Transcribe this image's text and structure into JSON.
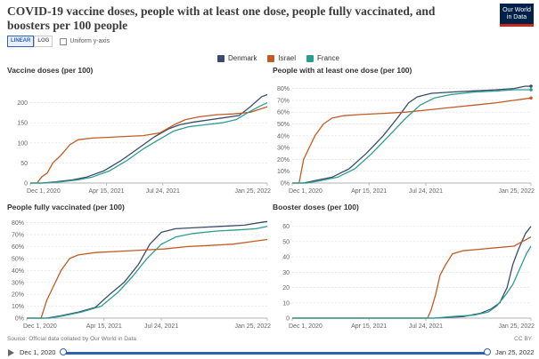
{
  "header": {
    "title": "COVID-19 vaccine doses, people with at least one dose, people fully vaccinated, and boosters per 100 people",
    "logo_text": "Our World in Data"
  },
  "controls": {
    "linear_label": "LINEAR",
    "log_label": "LOG",
    "uniform_label": "Uniform y-axis"
  },
  "legend": [
    {
      "name": "Denmark",
      "color": "#3a4a6b"
    },
    {
      "name": "Israel",
      "color": "#c25b25"
    },
    {
      "name": "France",
      "color": "#2a9d8f"
    }
  ],
  "footer": {
    "source": "Source: Official data collated by Our World in Data",
    "license": "CC BY"
  },
  "timeline": {
    "start_label": "Dec 1, 2020",
    "end_label": "Jan 25, 2022"
  },
  "chart_data": [
    {
      "type": "line",
      "title": "Vaccine doses (per 100)",
      "x_ticks": [
        "Dec 1, 2020",
        "Apr 15, 2021",
        "Jul 24, 2021",
        "Jan 25, 2022"
      ],
      "x_tick_days": [
        0,
        135,
        235,
        420
      ],
      "xlim_days": [
        0,
        420
      ],
      "ylim": [
        0,
        230
      ],
      "y_ticks": [
        0,
        50,
        100,
        150,
        200
      ],
      "y_ticks_labels": [
        "0",
        "50",
        "100",
        "150",
        "200"
      ],
      "series": [
        {
          "name": "Denmark",
          "color": "#3a4a6b",
          "points": [
            [
              0,
              0
            ],
            [
              20,
              0
            ],
            [
              45,
              3
            ],
            [
              75,
              8
            ],
            [
              100,
              15
            ],
            [
              130,
              30
            ],
            [
              160,
              55
            ],
            [
              190,
              85
            ],
            [
              220,
              115
            ],
            [
              245,
              135
            ],
            [
              265,
              145
            ],
            [
              290,
              152
            ],
            [
              320,
              158
            ],
            [
              345,
              163
            ],
            [
              370,
              168
            ],
            [
              390,
              190
            ],
            [
              410,
              215
            ],
            [
              420,
              220
            ]
          ]
        },
        {
          "name": "Israel",
          "color": "#c25b25",
          "points": [
            [
              0,
              0
            ],
            [
              12,
              0
            ],
            [
              20,
              15
            ],
            [
              30,
              25
            ],
            [
              40,
              50
            ],
            [
              55,
              70
            ],
            [
              70,
              95
            ],
            [
              85,
              108
            ],
            [
              110,
              112
            ],
            [
              140,
              114
            ],
            [
              170,
              116
            ],
            [
              200,
              118
            ],
            [
              230,
              125
            ],
            [
              255,
              145
            ],
            [
              275,
              158
            ],
            [
              300,
              165
            ],
            [
              330,
              170
            ],
            [
              360,
              172
            ],
            [
              390,
              176
            ],
            [
              420,
              190
            ]
          ]
        },
        {
          "name": "France",
          "color": "#2a9d8f",
          "points": [
            [
              0,
              0
            ],
            [
              25,
              0
            ],
            [
              55,
              3
            ],
            [
              85,
              8
            ],
            [
              110,
              15
            ],
            [
              140,
              30
            ],
            [
              170,
              55
            ],
            [
              200,
              85
            ],
            [
              230,
              110
            ],
            [
              255,
              130
            ],
            [
              280,
              140
            ],
            [
              310,
              145
            ],
            [
              340,
              150
            ],
            [
              365,
              158
            ],
            [
              385,
              175
            ],
            [
              405,
              190
            ],
            [
              420,
              200
            ]
          ]
        }
      ]
    },
    {
      "type": "line",
      "title": "People with at least one dose (per 100)",
      "x_ticks": [
        "Dec 1, 2020",
        "Apr 15, 2021",
        "Jul 24, 2021",
        "Jan 25, 2022"
      ],
      "x_tick_days": [
        0,
        135,
        235,
        420
      ],
      "xlim_days": [
        0,
        420
      ],
      "ylim": [
        0,
        85
      ],
      "y_ticks": [
        0,
        10,
        20,
        30,
        40,
        50,
        60,
        70,
        80
      ],
      "y_ticks_labels": [
        "0%",
        "10%",
        "20%",
        "30%",
        "40%",
        "50%",
        "60%",
        "70%",
        "80%"
      ],
      "series": [
        {
          "name": "Denmark",
          "color": "#3a4a6b",
          "points": [
            [
              0,
              0
            ],
            [
              20,
              0
            ],
            [
              40,
              2
            ],
            [
              70,
              5
            ],
            [
              100,
              12
            ],
            [
              130,
              25
            ],
            [
              160,
              40
            ],
            [
              185,
              55
            ],
            [
              205,
              68
            ],
            [
              220,
              73
            ],
            [
              245,
              76
            ],
            [
              280,
              77
            ],
            [
              320,
              78
            ],
            [
              360,
              79
            ],
            [
              390,
              80
            ],
            [
              410,
              82
            ],
            [
              420,
              82
            ]
          ]
        },
        {
          "name": "Israel",
          "color": "#c25b25",
          "points": [
            [
              0,
              0
            ],
            [
              12,
              0
            ],
            [
              20,
              20
            ],
            [
              30,
              30
            ],
            [
              40,
              40
            ],
            [
              55,
              50
            ],
            [
              70,
              55
            ],
            [
              90,
              57
            ],
            [
              120,
              58
            ],
            [
              160,
              59
            ],
            [
              200,
              60
            ],
            [
              240,
              62
            ],
            [
              280,
              64
            ],
            [
              320,
              66
            ],
            [
              360,
              68
            ],
            [
              390,
              70
            ],
            [
              420,
              72
            ]
          ]
        },
        {
          "name": "France",
          "color": "#2a9d8f",
          "points": [
            [
              0,
              0
            ],
            [
              25,
              0
            ],
            [
              50,
              2
            ],
            [
              80,
              5
            ],
            [
              110,
              12
            ],
            [
              140,
              25
            ],
            [
              170,
              40
            ],
            [
              200,
              55
            ],
            [
              225,
              66
            ],
            [
              250,
              72
            ],
            [
              280,
              75
            ],
            [
              320,
              77
            ],
            [
              360,
              78
            ],
            [
              390,
              79
            ],
            [
              420,
              79
            ]
          ]
        }
      ]
    },
    {
      "type": "line",
      "title": "People fully vaccinated (per 100)",
      "x_ticks": [
        "Dec 1, 2020",
        "Apr 15, 2021",
        "Jul 24, 2021",
        "Jan 25, 2022"
      ],
      "x_tick_days": [
        0,
        135,
        235,
        420
      ],
      "xlim_days": [
        0,
        420
      ],
      "ylim": [
        0,
        82
      ],
      "y_ticks": [
        0,
        10,
        20,
        30,
        40,
        50,
        60,
        70,
        80
      ],
      "y_ticks_labels": [
        "0%",
        "10%",
        "20%",
        "30%",
        "40%",
        "50%",
        "60%",
        "70%",
        "80%"
      ],
      "series": [
        {
          "name": "Denmark",
          "color": "#3a4a6b",
          "points": [
            [
              0,
              0
            ],
            [
              35,
              0
            ],
            [
              60,
              2
            ],
            [
              90,
              5
            ],
            [
              120,
              9
            ],
            [
              145,
              20
            ],
            [
              170,
              30
            ],
            [
              195,
              45
            ],
            [
              215,
              62
            ],
            [
              235,
              72
            ],
            [
              260,
              75
            ],
            [
              300,
              76
            ],
            [
              340,
              77
            ],
            [
              380,
              78
            ],
            [
              405,
              80
            ],
            [
              420,
              81
            ]
          ]
        },
        {
          "name": "Israel",
          "color": "#c25b25",
          "points": [
            [
              0,
              0
            ],
            [
              25,
              0
            ],
            [
              35,
              15
            ],
            [
              45,
              25
            ],
            [
              60,
              40
            ],
            [
              75,
              50
            ],
            [
              90,
              53
            ],
            [
              120,
              55
            ],
            [
              160,
              56
            ],
            [
              200,
              57
            ],
            [
              240,
              58
            ],
            [
              280,
              60
            ],
            [
              320,
              61
            ],
            [
              360,
              62
            ],
            [
              390,
              64
            ],
            [
              420,
              66
            ]
          ]
        },
        {
          "name": "France",
          "color": "#2a9d8f",
          "points": [
            [
              0,
              0
            ],
            [
              40,
              0
            ],
            [
              65,
              2
            ],
            [
              95,
              5
            ],
            [
              130,
              10
            ],
            [
              160,
              22
            ],
            [
              185,
              35
            ],
            [
              210,
              50
            ],
            [
              235,
              62
            ],
            [
              260,
              68
            ],
            [
              290,
              71
            ],
            [
              330,
              73
            ],
            [
              370,
              74
            ],
            [
              400,
              75
            ],
            [
              420,
              77
            ]
          ]
        }
      ]
    },
    {
      "type": "line",
      "title": "Booster doses (per 100)",
      "x_ticks": [
        "Dec 1, 2020",
        "Apr 15, 2021",
        "Jul 24, 2021",
        "Jan 25, 2022"
      ],
      "x_tick_days": [
        0,
        135,
        235,
        420
      ],
      "xlim_days": [
        0,
        420
      ],
      "ylim": [
        0,
        65
      ],
      "y_ticks": [
        0,
        10,
        20,
        30,
        40,
        50,
        60
      ],
      "y_ticks_labels": [
        "0",
        "10",
        "20",
        "30",
        "40",
        "50",
        "60"
      ],
      "series": [
        {
          "name": "Denmark",
          "color": "#3a4a6b",
          "points": [
            [
              0,
              0
            ],
            [
              200,
              0
            ],
            [
              250,
              0
            ],
            [
              300,
              1
            ],
            [
              330,
              3
            ],
            [
              350,
              6
            ],
            [
              365,
              10
            ],
            [
              378,
              20
            ],
            [
              388,
              35
            ],
            [
              398,
              45
            ],
            [
              410,
              55
            ],
            [
              420,
              60
            ]
          ]
        },
        {
          "name": "Israel",
          "color": "#c25b25",
          "points": [
            [
              0,
              0
            ],
            [
              238,
              0
            ],
            [
              244,
              5
            ],
            [
              252,
              15
            ],
            [
              260,
              28
            ],
            [
              270,
              35
            ],
            [
              282,
              42
            ],
            [
              300,
              44
            ],
            [
              330,
              45
            ],
            [
              360,
              46
            ],
            [
              390,
              47
            ],
            [
              405,
              50
            ],
            [
              420,
              53
            ]
          ]
        },
        {
          "name": "France",
          "color": "#2a9d8f",
          "points": [
            [
              0,
              0
            ],
            [
              200,
              0
            ],
            [
              250,
              0
            ],
            [
              280,
              1
            ],
            [
              320,
              2
            ],
            [
              345,
              4
            ],
            [
              360,
              8
            ],
            [
              375,
              15
            ],
            [
              388,
              22
            ],
            [
              400,
              32
            ],
            [
              412,
              42
            ],
            [
              420,
              47
            ]
          ]
        }
      ]
    }
  ]
}
